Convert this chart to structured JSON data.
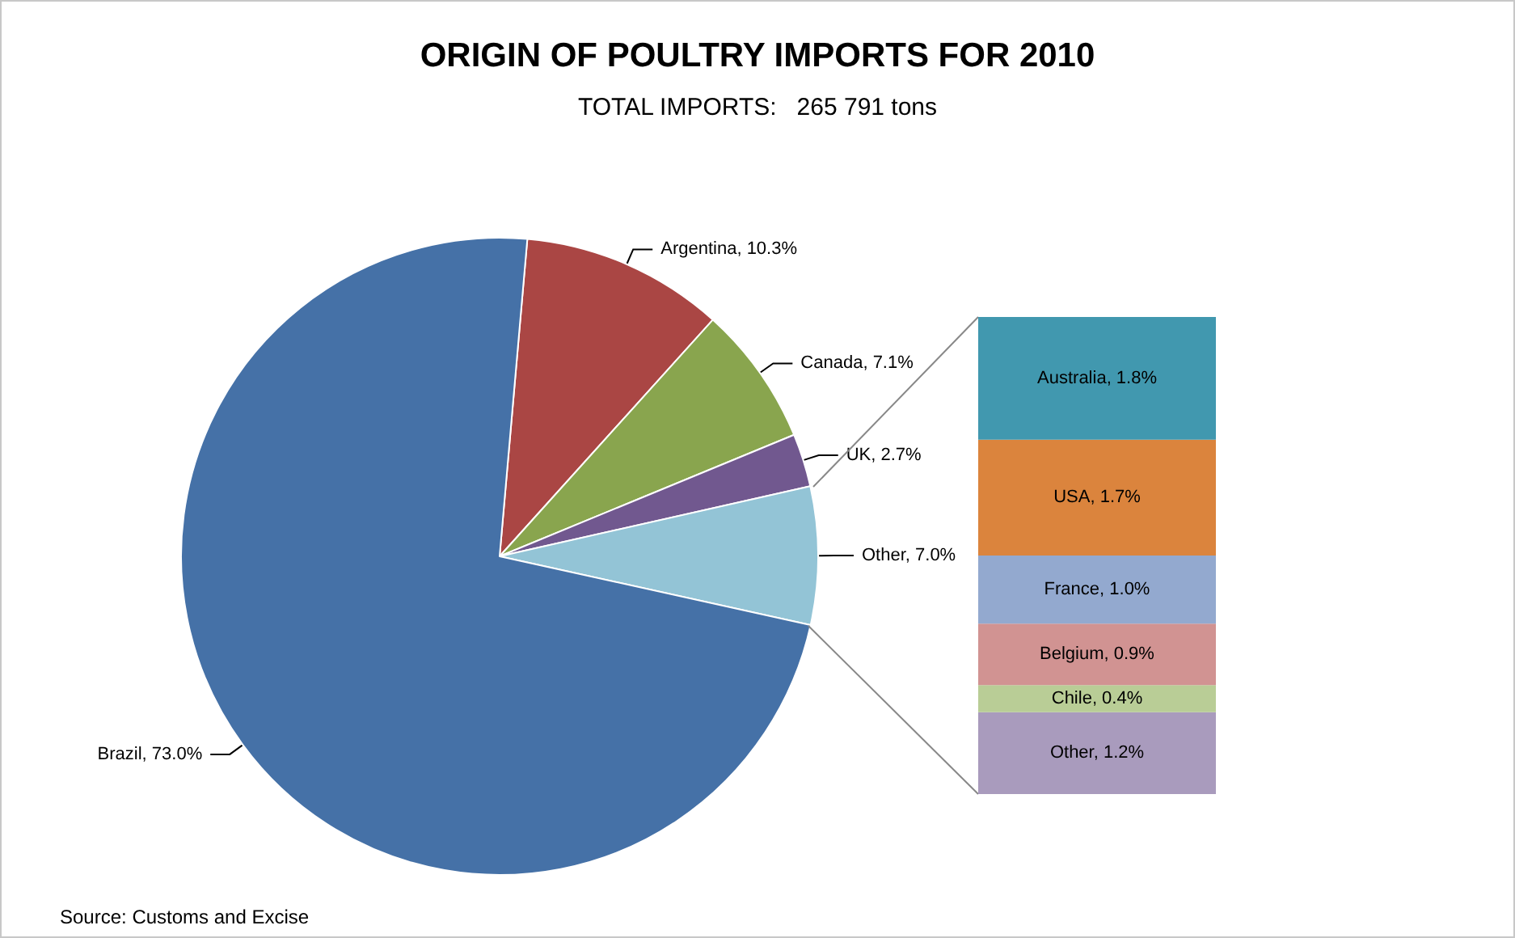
{
  "chart_data": [
    {
      "type": "pie",
      "title": "ORIGIN OF POULTRY IMPORTS FOR 2010",
      "subtitle": "TOTAL IMPORTS:   265 791 tons",
      "annotations": [
        "Source: Customs and Excise"
      ],
      "categories": [
        "Argentina",
        "Canada",
        "UK",
        "Other",
        "Brazil"
      ],
      "values": [
        10.3,
        7.1,
        2.7,
        7.0,
        73.0
      ],
      "value_labels": [
        "10.3%",
        "7.1%",
        "2.7%",
        "7.0%",
        "73.0%"
      ],
      "colors": [
        "#aa4644",
        "#89a54e",
        "#71588f",
        "#93c4d6",
        "#4571a7"
      ],
      "legend": false
    },
    {
      "type": "bar",
      "stacked": true,
      "categories": [
        null
      ],
      "tick_labels": false,
      "legend": false,
      "series": [
        {
          "color": "#a99bbd",
          "values": [
            1.2
          ],
          "value_labels": [
            "Other, 1.2%"
          ]
        },
        {
          "color": "#b9cd96",
          "values": [
            0.4
          ],
          "value_labels": [
            "Chile, 0.4%"
          ]
        },
        {
          "color": "#d19392",
          "values": [
            0.9
          ],
          "value_labels": [
            "Belgium, 0.9%"
          ]
        },
        {
          "color": "#93a9cf",
          "values": [
            1.0
          ],
          "value_labels": [
            "France, 1.0%"
          ]
        },
        {
          "color": "#db843d",
          "values": [
            1.7
          ],
          "value_labels": [
            "USA, 1.7%"
          ]
        },
        {
          "color": "#4198af",
          "values": [
            1.8
          ],
          "value_labels": [
            "Australia, 1.8%"
          ]
        }
      ]
    }
  ]
}
